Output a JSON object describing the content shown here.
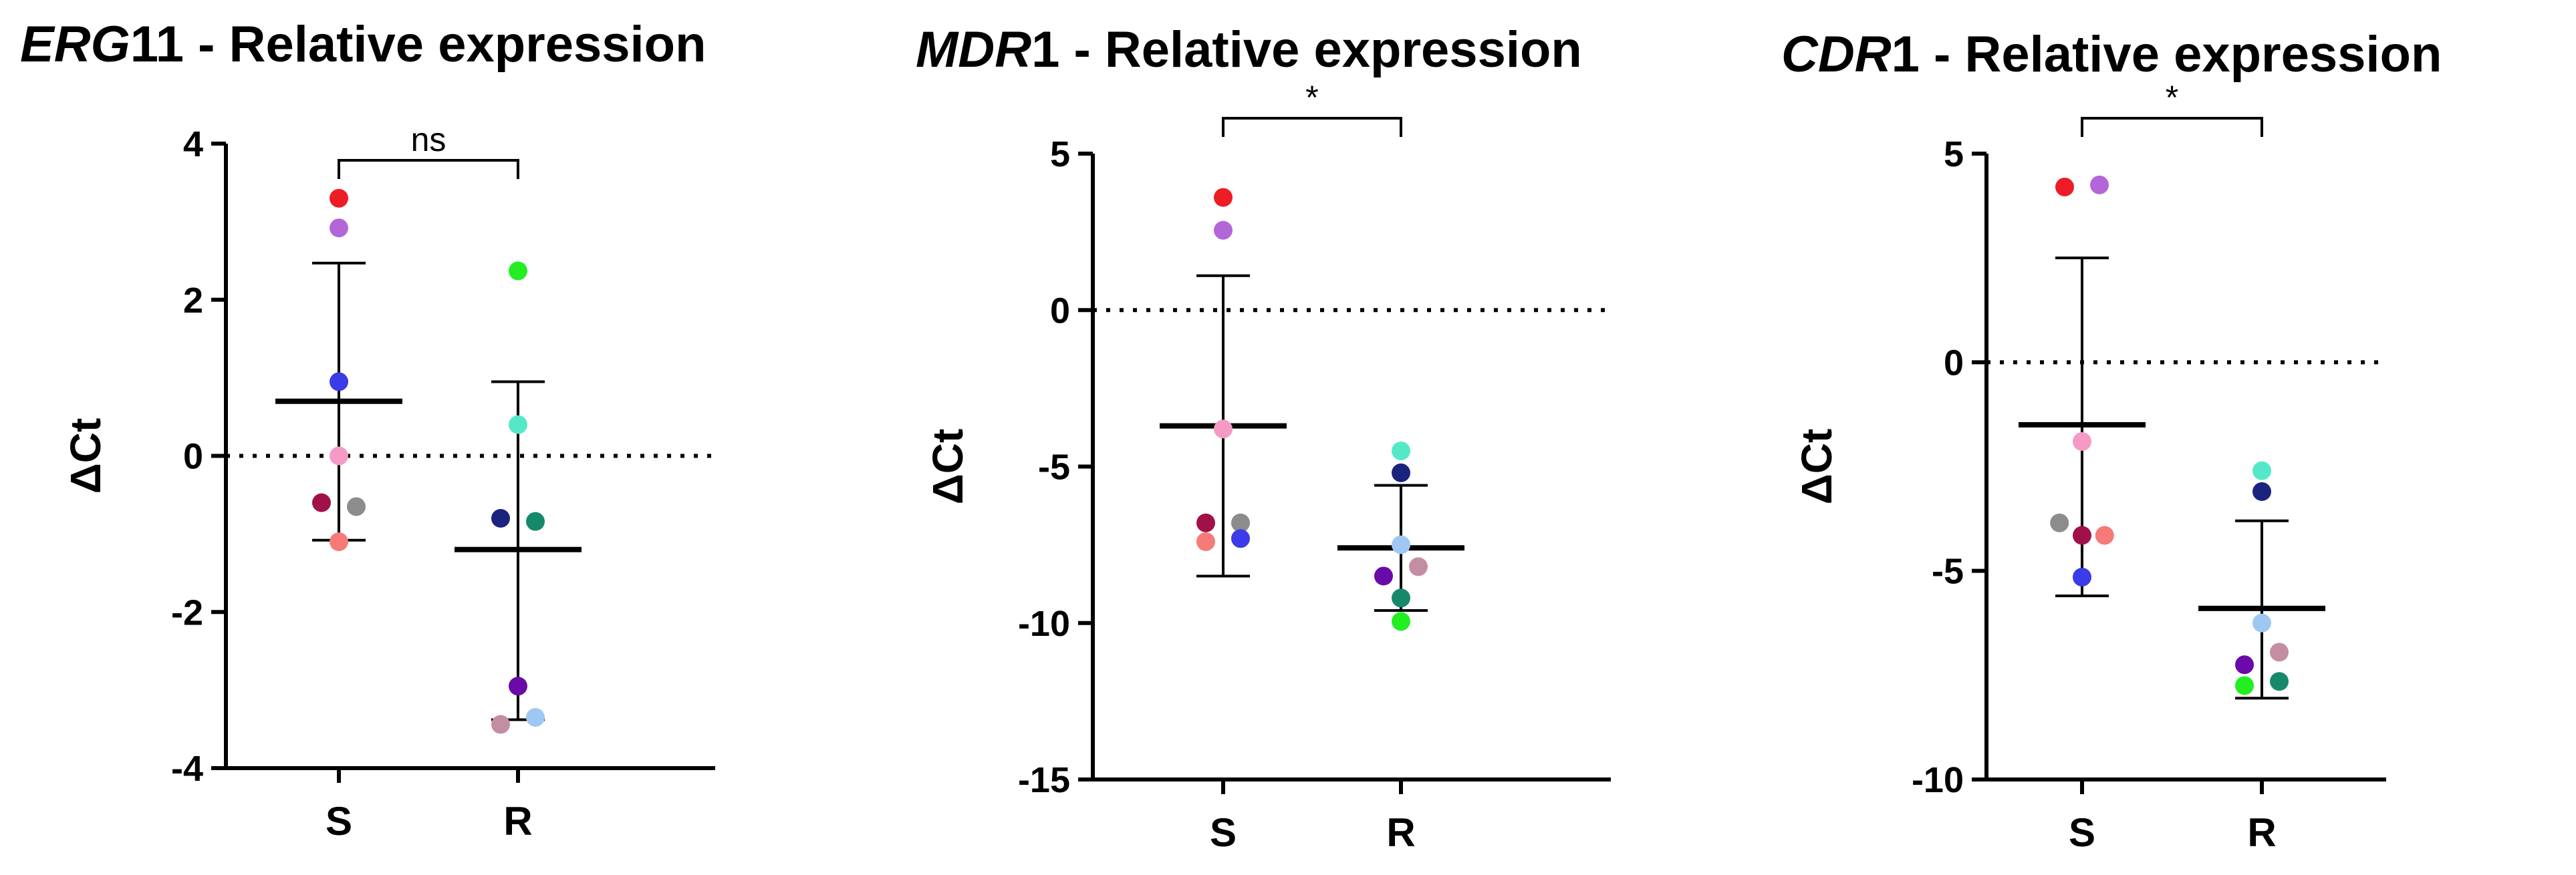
{
  "chart_data": [
    {
      "type": "scatter",
      "title": {
        "gene": "ERG",
        "rest": "11 - Relative expression"
      },
      "ylabel": "ΔCt",
      "ylim": [
        -4,
        4
      ],
      "yticks": [
        4,
        2,
        0,
        -2,
        -4
      ],
      "ytick_labels": [
        "4",
        "2",
        "0",
        "-2",
        "-4"
      ],
      "categories": [
        "S",
        "R"
      ],
      "significance": "ns",
      "groups": [
        {
          "name": "S",
          "mean": 0.7,
          "sd_upper": 2.47,
          "sd_lower": -1.08,
          "points": [
            {
              "y": 3.3,
              "jitter": 0,
              "color": "#ee1c25"
            },
            {
              "y": 2.92,
              "jitter": 0,
              "color": "#b366d8"
            },
            {
              "y": 0.95,
              "jitter": 0,
              "color": "#3b3be8"
            },
            {
              "y": 0.0,
              "jitter": 0,
              "color": "#f59ac4"
            },
            {
              "y": -0.6,
              "jitter": -1,
              "color": "#a0114a"
            },
            {
              "y": -0.65,
              "jitter": 1,
              "color": "#8c8c8c"
            },
            {
              "y": -1.1,
              "jitter": 0,
              "color": "#f57a78"
            }
          ]
        },
        {
          "name": "R",
          "mean": -1.2,
          "sd_upper": 0.95,
          "sd_lower": -3.38,
          "points": [
            {
              "y": 2.37,
              "jitter": 0,
              "color": "#22ee22"
            },
            {
              "y": 0.4,
              "jitter": 0,
              "color": "#55e8c8"
            },
            {
              "y": -0.8,
              "jitter": -1,
              "color": "#1a237e"
            },
            {
              "y": -0.84,
              "jitter": 1,
              "color": "#16896b"
            },
            {
              "y": -2.95,
              "jitter": 0,
              "color": "#6a0aa8"
            },
            {
              "y": -3.35,
              "jitter": 1,
              "color": "#9ec8f2"
            },
            {
              "y": -3.44,
              "jitter": -1,
              "color": "#c38da2"
            }
          ]
        }
      ]
    },
    {
      "type": "scatter",
      "title": {
        "gene": "MDR",
        "rest": "1 - Relative expression"
      },
      "ylabel": "ΔCt",
      "ylim": [
        -15,
        5
      ],
      "yticks": [
        5,
        0,
        -5,
        -10,
        -15
      ],
      "ytick_labels": [
        "5",
        "0",
        "-5",
        "-10",
        "-15"
      ],
      "categories": [
        "S",
        "R"
      ],
      "significance": "*",
      "groups": [
        {
          "name": "S",
          "mean": -3.7,
          "sd_upper": 1.1,
          "sd_lower": -8.5,
          "points": [
            {
              "y": 3.6,
              "jitter": 0,
              "color": "#ee1c25"
            },
            {
              "y": 2.55,
              "jitter": 0,
              "color": "#b366d8"
            },
            {
              "y": -3.8,
              "jitter": 0,
              "color": "#f59ac4"
            },
            {
              "y": -6.8,
              "jitter": -1,
              "color": "#a0114a"
            },
            {
              "y": -6.8,
              "jitter": 1,
              "color": "#8c8c8c"
            },
            {
              "y": -7.4,
              "jitter": -1,
              "color": "#f57a78"
            },
            {
              "y": -7.3,
              "jitter": 1,
              "color": "#3b3be8"
            }
          ]
        },
        {
          "name": "R",
          "mean": -7.6,
          "sd_upper": -5.6,
          "sd_lower": -9.6,
          "points": [
            {
              "y": -4.5,
              "jitter": 0,
              "color": "#55e8c8"
            },
            {
              "y": -5.2,
              "jitter": 0,
              "color": "#1a237e"
            },
            {
              "y": -7.5,
              "jitter": 0,
              "color": "#9ec8f2"
            },
            {
              "y": -8.2,
              "jitter": 1,
              "color": "#c38da2"
            },
            {
              "y": -8.5,
              "jitter": -1,
              "color": "#6a0aa8"
            },
            {
              "y": -9.2,
              "jitter": 0,
              "color": "#16896b"
            },
            {
              "y": -9.95,
              "jitter": 0,
              "color": "#22ee22"
            }
          ]
        }
      ]
    },
    {
      "type": "scatter",
      "title": {
        "gene": "CDR",
        "rest": "1 - Relative expression"
      },
      "ylabel": "ΔCt",
      "ylim": [
        -10,
        5
      ],
      "yticks": [
        5,
        0,
        -5,
        -10
      ],
      "ytick_labels": [
        "5",
        "0",
        "-5",
        "-10"
      ],
      "categories": [
        "S",
        "R"
      ],
      "significance": "*",
      "groups": [
        {
          "name": "S",
          "mean": -1.5,
          "sd_upper": 2.5,
          "sd_lower": -5.6,
          "points": [
            {
              "y": 4.2,
              "jitter": -1,
              "color": "#ee1c25"
            },
            {
              "y": 4.25,
              "jitter": 1,
              "color": "#b366d8"
            },
            {
              "y": -1.9,
              "jitter": 0,
              "color": "#f59ac4"
            },
            {
              "y": -3.85,
              "jitter": -1.3,
              "color": "#8c8c8c"
            },
            {
              "y": -4.15,
              "jitter": 0,
              "color": "#a0114a"
            },
            {
              "y": -4.15,
              "jitter": 1.3,
              "color": "#f57a78"
            },
            {
              "y": -5.15,
              "jitter": 0,
              "color": "#3b3be8"
            }
          ]
        },
        {
          "name": "R",
          "mean": -5.9,
          "sd_upper": -3.8,
          "sd_lower": -8.05,
          "points": [
            {
              "y": -2.6,
              "jitter": 0,
              "color": "#55e8c8"
            },
            {
              "y": -3.1,
              "jitter": 0,
              "color": "#1a237e"
            },
            {
              "y": -6.25,
              "jitter": 0,
              "color": "#9ec8f2"
            },
            {
              "y": -6.95,
              "jitter": 1,
              "color": "#c38da2"
            },
            {
              "y": -7.25,
              "jitter": -1,
              "color": "#6a0aa8"
            },
            {
              "y": -7.65,
              "jitter": 1,
              "color": "#16896b"
            },
            {
              "y": -7.75,
              "jitter": -1,
              "color": "#22ee22"
            }
          ]
        }
      ]
    }
  ]
}
